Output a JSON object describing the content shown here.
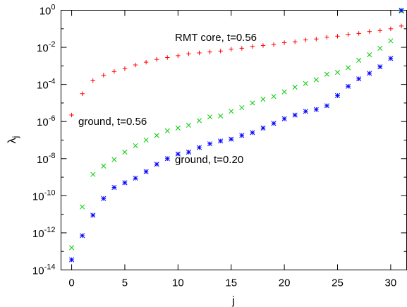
{
  "chart_data": {
    "type": "scatter",
    "xlabel": "j",
    "ylabel": "λ",
    "ylabel_sub": "j",
    "ylog": true,
    "xlim": [
      -1,
      31.5
    ],
    "ylim_exp": [
      -14,
      0
    ],
    "x_ticks": [
      0,
      5,
      10,
      15,
      20,
      25,
      30
    ],
    "y_tick_exps": [
      -14,
      -12,
      -10,
      -8,
      -6,
      -4,
      -2,
      0
    ],
    "y_tick_base": "10",
    "grid": false,
    "legend": "none",
    "annotations": [
      {
        "text": "RMT core, t=0.56",
        "series": 0
      },
      {
        "text": "ground, t=0.56",
        "series": 1
      },
      {
        "text": "ground, t=0.20",
        "series": 2
      }
    ],
    "series": [
      {
        "marker": "plus",
        "color": "#ff0000",
        "x": [
          0,
          1,
          2,
          3,
          4,
          5,
          6,
          7,
          8,
          9,
          10,
          11,
          12,
          13,
          14,
          15,
          16,
          17,
          18,
          19,
          20,
          21,
          22,
          23,
          24,
          25,
          26,
          27,
          28,
          29,
          30,
          31
        ],
        "log10_y": [
          -5.65,
          -4.5,
          -3.8,
          -3.5,
          -3.3,
          -3.15,
          -2.95,
          -2.8,
          -2.65,
          -2.55,
          -2.45,
          -2.35,
          -2.3,
          -2.25,
          -2.2,
          -2.1,
          -2.05,
          -1.95,
          -1.9,
          -1.85,
          -1.75,
          -1.7,
          -1.6,
          -1.55,
          -1.45,
          -1.4,
          -1.3,
          -1.25,
          -1.15,
          -1.1,
          -1.0,
          -0.85
        ]
      },
      {
        "marker": "cross",
        "color": "#00cc00",
        "x": [
          0,
          1,
          2,
          3,
          4,
          5,
          6,
          7,
          8,
          9,
          10,
          11,
          12,
          13,
          14,
          15,
          16,
          17,
          18,
          19,
          20,
          21,
          22,
          23,
          24,
          25,
          26,
          27,
          28,
          29,
          30,
          31
        ],
        "log10_y": [
          -12.8,
          -10.6,
          -8.85,
          -8.4,
          -8.05,
          -7.65,
          -7.3,
          -7.0,
          -6.75,
          -6.5,
          -6.35,
          -6.2,
          -5.95,
          -5.75,
          -5.7,
          -5.45,
          -5.25,
          -5.0,
          -4.8,
          -4.65,
          -4.4,
          -4.15,
          -3.95,
          -3.75,
          -3.45,
          -3.35,
          -3.1,
          -2.7,
          -2.4,
          -2.05,
          -1.65,
          -0.05
        ]
      },
      {
        "marker": "star",
        "color": "#0000ff",
        "x": [
          0,
          1,
          2,
          3,
          4,
          5,
          6,
          7,
          8,
          9,
          10,
          11,
          12,
          13,
          14,
          15,
          16,
          17,
          18,
          19,
          20,
          21,
          22,
          23,
          24,
          25,
          26,
          27,
          28,
          29,
          30,
          31
        ],
        "log10_y": [
          -13.45,
          -12.15,
          -11.05,
          -10.15,
          -9.55,
          -9.3,
          -9.05,
          -8.7,
          -8.3,
          -8.0,
          -7.75,
          -7.65,
          -7.4,
          -7.2,
          -7.05,
          -6.95,
          -6.75,
          -6.6,
          -6.35,
          -6.1,
          -5.85,
          -5.65,
          -5.45,
          -5.35,
          -5.15,
          -4.6,
          -4.1,
          -3.7,
          -3.4,
          -3.05,
          -2.6,
          0.0
        ]
      }
    ]
  }
}
